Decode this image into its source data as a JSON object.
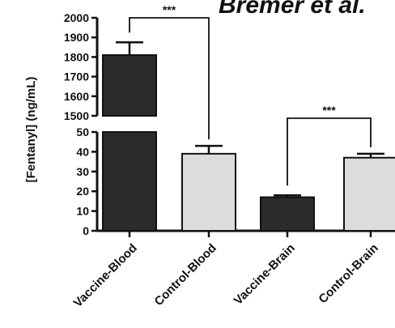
{
  "chart_data": {
    "type": "bar",
    "title": "Bremer et al.",
    "ylabel": "[Fentanyl] (ng/mL)",
    "categories": [
      "Vaccine-Blood",
      "Control-Blood",
      "Vaccine-Brain",
      "Control-Brain"
    ],
    "values": [
      1810,
      39,
      17,
      37
    ],
    "errors": [
      65,
      4,
      1,
      2
    ],
    "bar_colors": [
      "#2b2b2b",
      "#dcdcdc",
      "#2b2b2b",
      "#dcdcdc"
    ],
    "broken_axis": true,
    "lower_ylim": [
      0,
      50
    ],
    "upper_ylim": [
      1500,
      2000
    ],
    "lower_ticks": [
      "0",
      "10",
      "20",
      "30",
      "40",
      "50"
    ],
    "upper_ticks": [
      "1500",
      "1600",
      "1700",
      "1800",
      "1900",
      "2000"
    ],
    "significance": [
      {
        "from": "Vaccine-Blood",
        "to": "Control-Blood",
        "label": "***"
      },
      {
        "from": "Vaccine-Brain",
        "to": "Control-Brain",
        "label": "***"
      }
    ]
  }
}
